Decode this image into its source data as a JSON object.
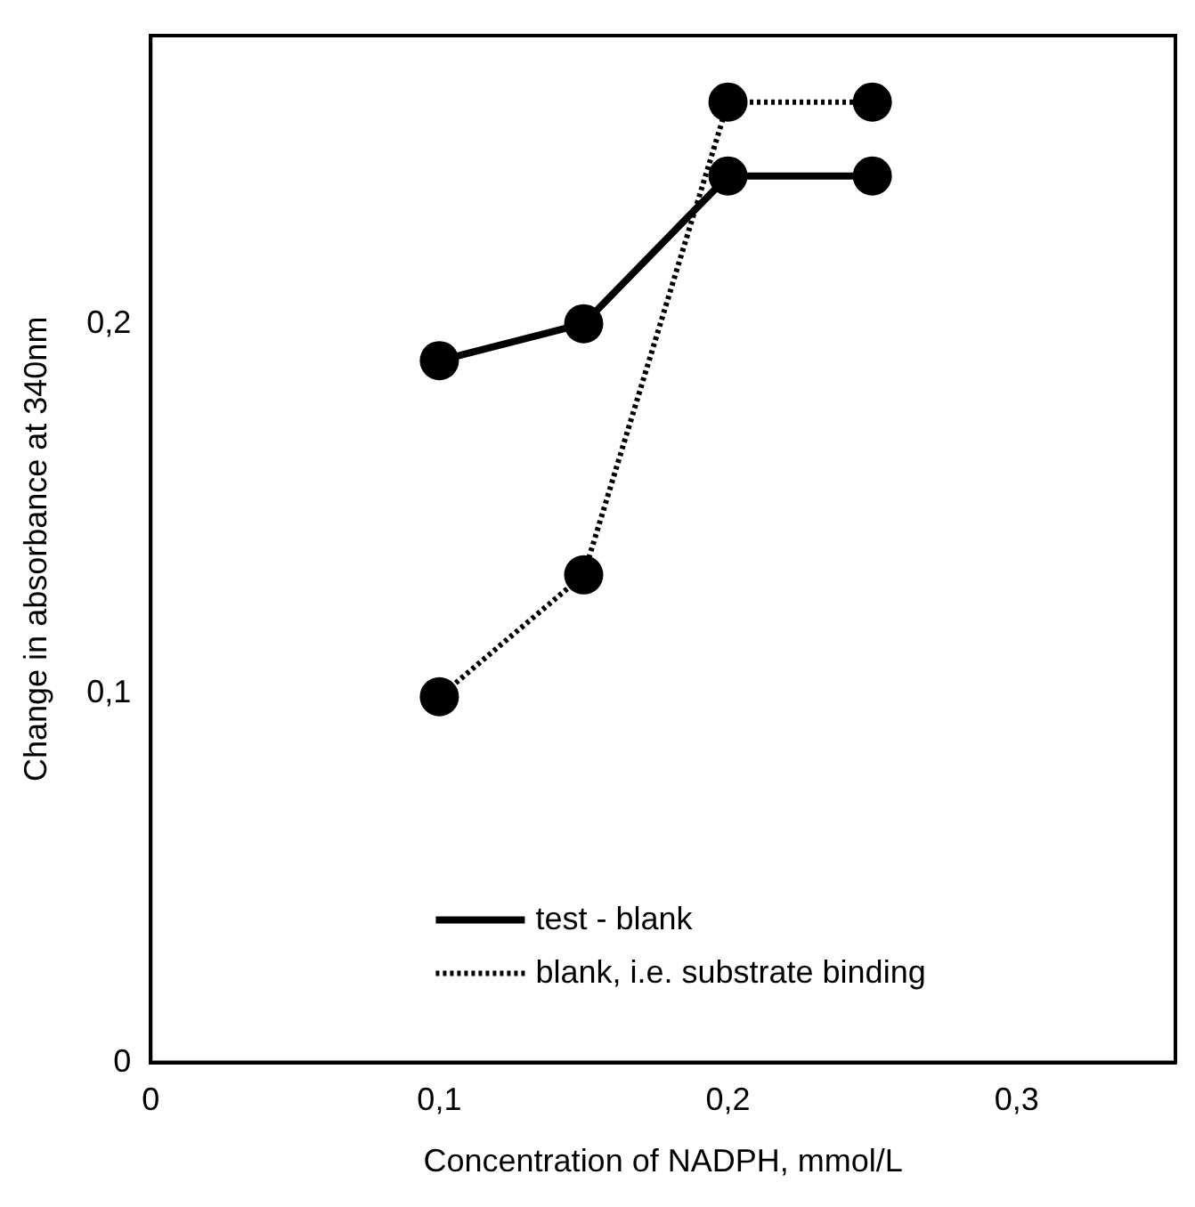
{
  "chart_data": {
    "type": "line",
    "xlabel": "Concentration of NADPH, mmol/L",
    "ylabel": "Change in absorbance at 340nm",
    "x": [
      0.1,
      0.15,
      0.2,
      0.25
    ],
    "series": [
      {
        "name": "test - blank",
        "color": "#000000",
        "values": [
          0.19,
          0.2,
          0.24,
          0.24
        ],
        "line_style": "solid"
      },
      {
        "name": "blank, i.e. substrate binding",
        "color": "#000000",
        "values": [
          0.099,
          0.132,
          0.26,
          0.26
        ],
        "line_style": "dotted"
      }
    ],
    "xlim": [
      0,
      0.355
    ],
    "ylim": [
      0,
      0.278
    ],
    "xticks": [
      0,
      {
        "value": 0.1,
        "label": "0,1"
      },
      {
        "value": 0.2,
        "label": "0,2"
      },
      {
        "value": 0.3,
        "label": "0,3"
      }
    ],
    "yticks": [
      0,
      {
        "value": 0.1,
        "label": "0,1"
      },
      {
        "value": 0.2,
        "label": "0,2"
      }
    ],
    "grid": false,
    "legend": "bottom",
    "marker": "circle"
  }
}
